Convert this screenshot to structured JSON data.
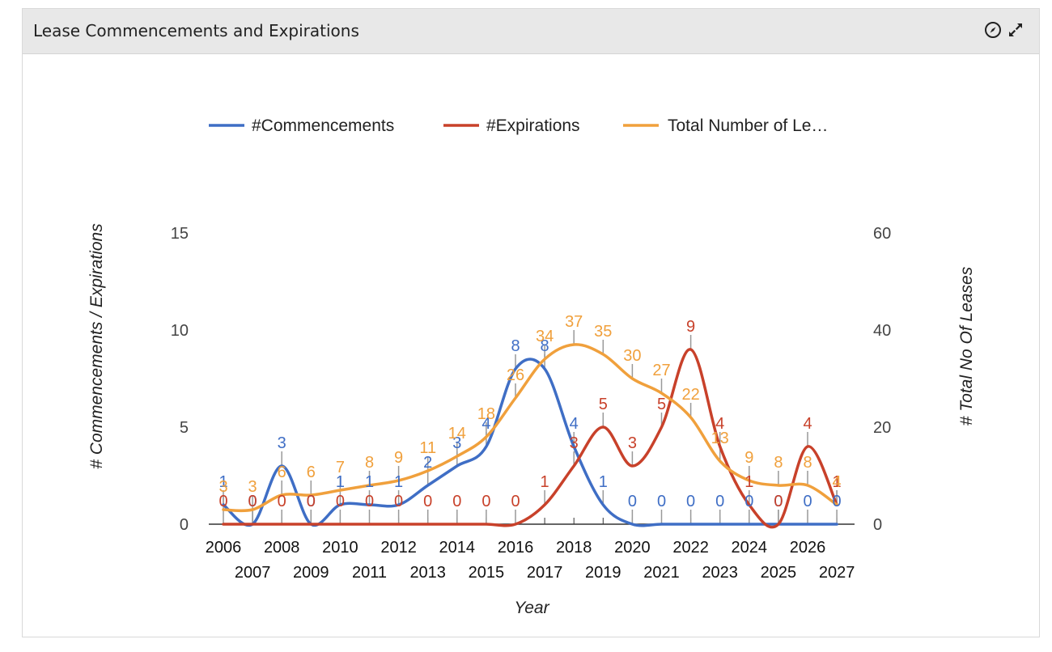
{
  "panel": {
    "title": "Lease Commencements and Expirations",
    "icons": [
      "compass-icon",
      "expand-icon"
    ]
  },
  "chart_data": {
    "type": "line",
    "x": [
      2006,
      2007,
      2008,
      2009,
      2010,
      2011,
      2012,
      2013,
      2014,
      2015,
      2016,
      2017,
      2018,
      2019,
      2020,
      2021,
      2022,
      2023,
      2024,
      2025,
      2026,
      2027
    ],
    "series": [
      {
        "name": "#Commencements",
        "axis": "left",
        "color": "#3f6ec5",
        "values": [
          1,
          0,
          3,
          0,
          1,
          1,
          1,
          2,
          3,
          4,
          8,
          8,
          4,
          1,
          0,
          0,
          0,
          0,
          0,
          0,
          0,
          0
        ]
      },
      {
        "name": "#Expirations",
        "axis": "left",
        "color": "#c8412a",
        "values": [
          0,
          0,
          0,
          0,
          0,
          0,
          0,
          0,
          0,
          0,
          0,
          1,
          3,
          5,
          3,
          5,
          9,
          4,
          1,
          0,
          4,
          1
        ]
      },
      {
        "name": "Total Number of Le…",
        "axis": "right",
        "color": "#f0a03c",
        "values": [
          3,
          3,
          6,
          6,
          7,
          8,
          9,
          11,
          14,
          18,
          26,
          34,
          37,
          35,
          30,
          27,
          22,
          13,
          9,
          8,
          8,
          4
        ]
      }
    ],
    "xlabel": "Year",
    "ylabel_left": "# Commencements / Expirations",
    "ylabel_right": "# Total No Of Leases",
    "ylim_left": [
      0,
      15
    ],
    "yticks_left": [
      0,
      5,
      10,
      15
    ],
    "ylim_right": [
      0,
      60
    ],
    "yticks_right": [
      0,
      20,
      40,
      60
    ],
    "legend_position": "top",
    "grid": false,
    "data_labels": true
  }
}
